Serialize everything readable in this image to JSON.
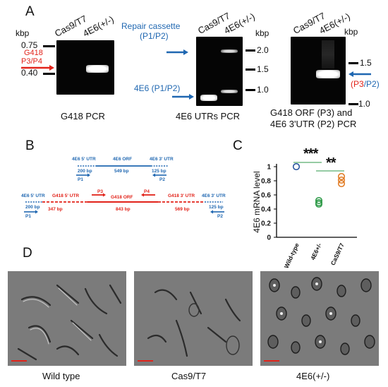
{
  "panelA": {
    "letter": "A",
    "gel1": {
      "lanes": [
        "Cas9/T7",
        "4E6(+/-)"
      ],
      "kbp": "kbp",
      "markers": [
        "0.75",
        "0.40"
      ],
      "primer_lines": [
        "G418",
        "P3/P4"
      ],
      "caption": "G418 PCR"
    },
    "gel2": {
      "lanes": [
        "Cas9/T7",
        "4E6(+/-)"
      ],
      "kbp": "kbp",
      "markers": [
        "2.0",
        "1.5",
        "1.0"
      ],
      "repair_lines": [
        "Repair cassette",
        "(P1/P2)"
      ],
      "fourE6": "4E6 (P1/P2)",
      "caption": "4E6 UTRs PCR"
    },
    "gel3": {
      "lanes": [
        "Cas9/T7",
        "4E6(+/-)"
      ],
      "kbp": "kbp",
      "markers": [
        "1.5",
        "1.0"
      ],
      "primer_open": "(",
      "primer_p3": "P3",
      "primer_slash": "/P2)",
      "caption_lines": [
        "G418 ORF (P3) and",
        "4E6 3'UTR (P2) PCR"
      ]
    }
  },
  "panelB": {
    "letter": "B",
    "top": {
      "utr5": "4E6 5' UTR",
      "orf": "4E6 ORF",
      "utr3": "4E6 3' UTR",
      "bp1": "200 bp",
      "bp2": "549 bp",
      "bp3": "125 bp",
      "p1": "P1",
      "p2": "P2"
    },
    "bottom": {
      "utr5": "4E6 5' UTR",
      "g418_5utr": "G418 5' UTR",
      "p3": "P3",
      "g418_orf": "G418 ORF",
      "p4": "P4",
      "g418_3utr": "G418 3' UTR",
      "utr3": "4E6 3' UTR",
      "bp_200": "200 bp",
      "bp_347": "347 bp",
      "bp_843": "843 bp",
      "bp_569": "569 bp",
      "bp_125": "125 bp",
      "p1": "P1",
      "p2": "P2"
    }
  },
  "panelC": {
    "letter": "C",
    "stars_left": "***",
    "stars_right": "**"
  },
  "panelD": {
    "letter": "D",
    "labels": [
      "Wild type",
      "Cas9/T7",
      "4E6(+/-)"
    ]
  },
  "chart_data": {
    "type": "scatter",
    "ylabel": "4E6 mRNA level",
    "xlabel": "",
    "categories": [
      "Wild-type",
      "4E6+/-",
      "CaS9/T7"
    ],
    "ylim": [
      0,
      1
    ],
    "yticks": [
      "0",
      "0.2",
      "0.4",
      "0.6",
      "0.8",
      "1"
    ],
    "series": [
      {
        "category": "Wild-type",
        "values": [
          1.0
        ],
        "color": "#1f4e9c"
      },
      {
        "category": "4E6+/-",
        "values": [
          0.52,
          0.49,
          0.47
        ],
        "color": "#2e9a48"
      },
      {
        "category": "CaS9/T7",
        "values": [
          0.86,
          0.81,
          0.76
        ],
        "color": "#e0781e"
      }
    ],
    "comparisons": [
      {
        "from": "Wild-type",
        "to": "4E6+/-",
        "label": "***"
      },
      {
        "from": "4E6+/-",
        "to": "CaS9/T7",
        "label": "**"
      }
    ]
  }
}
